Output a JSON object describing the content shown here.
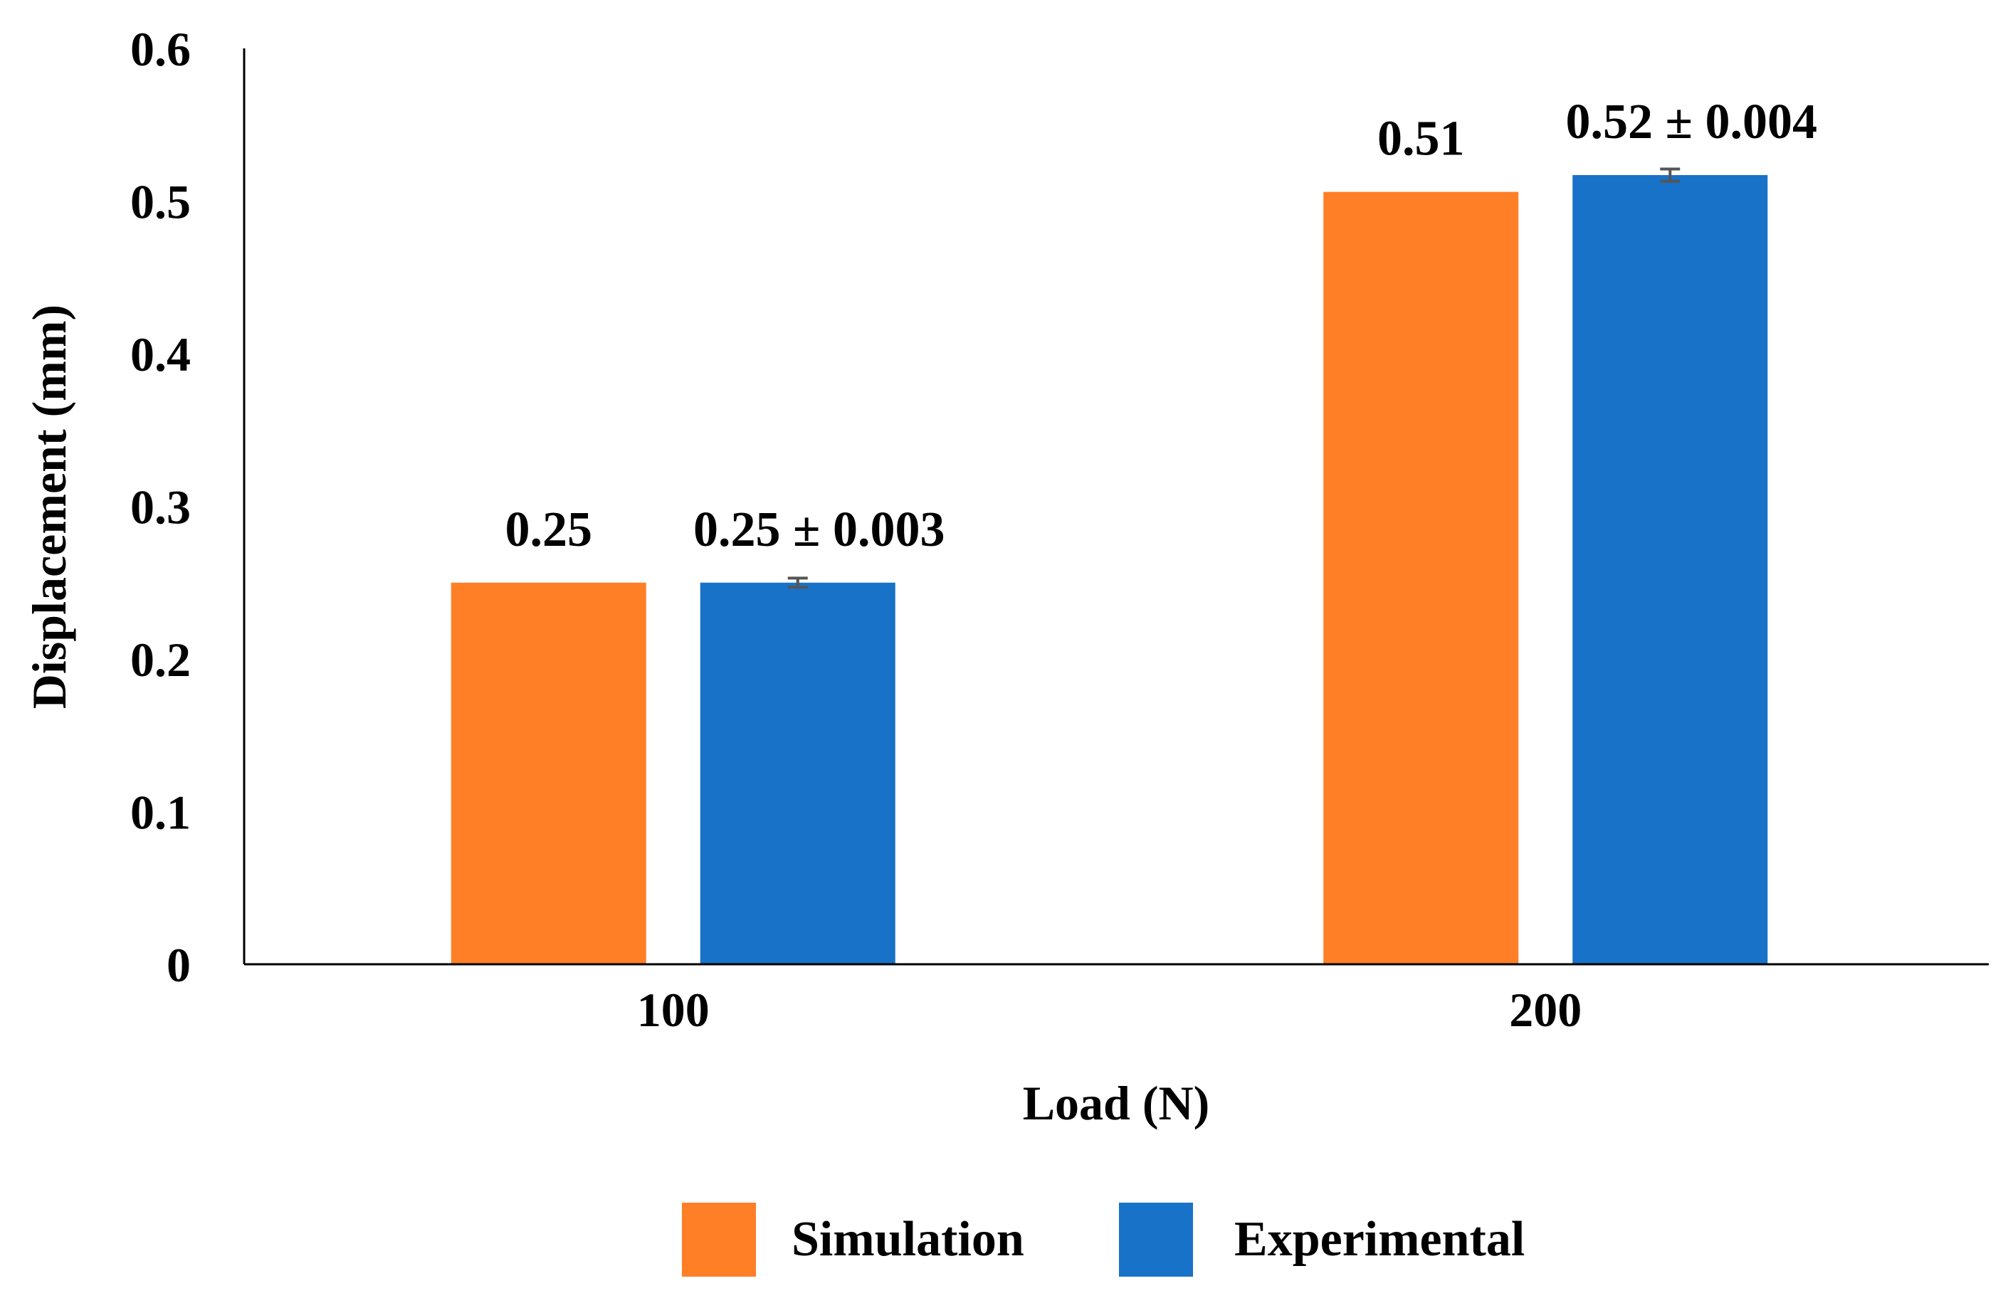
{
  "chart_data": {
    "type": "bar",
    "title": "",
    "xlabel": "Load (N)",
    "ylabel": "Displacement (mm)",
    "categories": [
      "100",
      "200"
    ],
    "ylim": [
      0,
      0.6
    ],
    "yticks": [
      0,
      0.1,
      0.2,
      0.3,
      0.4,
      0.5,
      0.6
    ],
    "ytick_labels": [
      "0",
      "0.1",
      "0.2",
      "0.3",
      "0.4",
      "0.5",
      "0.6"
    ],
    "grid": false,
    "legend_position": "bottom",
    "series": [
      {
        "name": "Simulation",
        "color": "#FF7F27",
        "values": [
          0.25,
          0.506
        ],
        "errors": [
          0,
          0
        ],
        "labels": [
          "0.25",
          "0.51"
        ]
      },
      {
        "name": "Experimental",
        "color": "#1872C8",
        "values": [
          0.25,
          0.517
        ],
        "errors": [
          0.003,
          0.004
        ],
        "labels": [
          "0.25 ± 0.003",
          "0.52 ± 0.004"
        ]
      }
    ]
  }
}
